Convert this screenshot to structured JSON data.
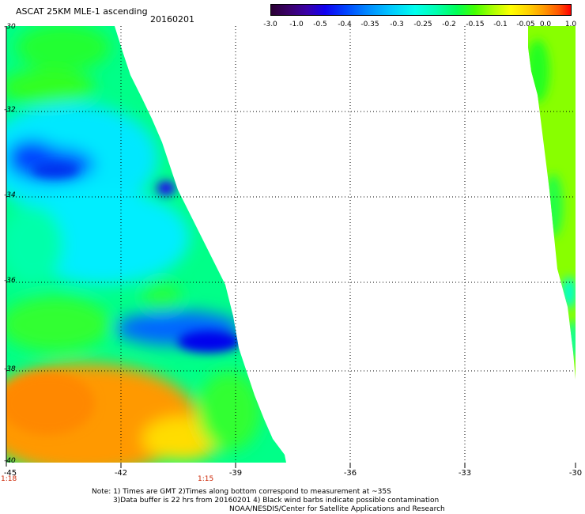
{
  "header": {
    "title": "ASCAT 25KM MLE-1 ascending",
    "date": "20160201"
  },
  "colorbar": {
    "labels": [
      "-3.0",
      "-1.0",
      "-0.5",
      "-0.4",
      "-0.35",
      "-0.3",
      "-0.25",
      "-0.2",
      "-0.15",
      "-0.1",
      "-0.05",
      "0.0",
      "1.0"
    ],
    "gradient_stops": [
      "#2a0033",
      "#3a00a8",
      "#0044ff",
      "#00c8ff",
      "#00ffee",
      "#00ff55",
      "#aaff00",
      "#ffff00",
      "#ff9900",
      "#ff0000"
    ]
  },
  "axes": {
    "y_labels": [
      "-30",
      "-32",
      "-34",
      "-36",
      "-38",
      "-40"
    ],
    "x_labels": [
      "-45",
      "-42",
      "-39",
      "-36",
      "-33",
      "-30"
    ],
    "gridlines": "dotted"
  },
  "time_labels": [
    "1:18",
    "1:15"
  ],
  "notes": [
    "Note: 1) Times are GMT 2)Times along bottom correspond to measurement at ~35S",
    "3)Data buffer is 22 hrs from 20160201 4) Black wind barbs indicate possible contamination",
    "NOAA/NESDIS/Center for Satellite Applications and Research"
  ],
  "swath_colors": {
    "west_swath_dominant": [
      "#00ffee",
      "#00ff55",
      "#ff9900",
      "#0044ff"
    ],
    "east_swath_dominant": [
      "#88ff00",
      "#00ff55",
      "#00ffee"
    ]
  }
}
